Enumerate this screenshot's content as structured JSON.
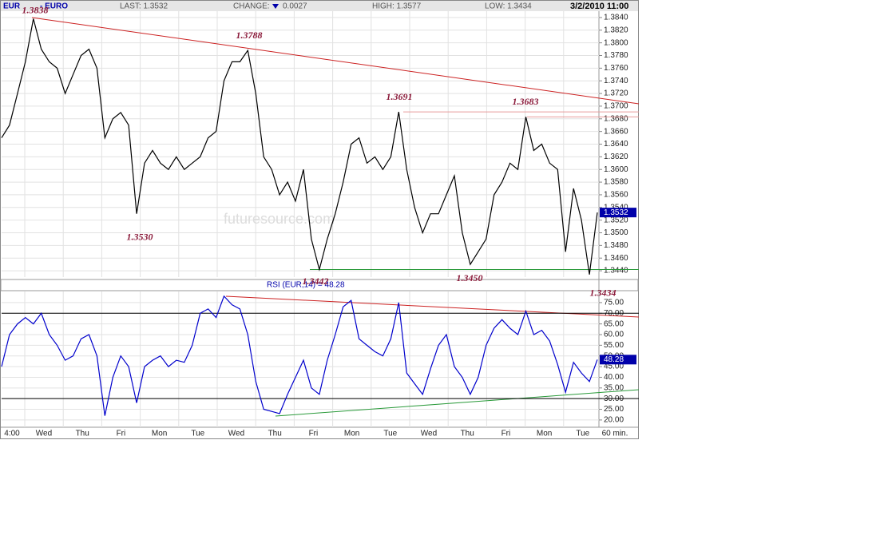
{
  "header": {
    "symbol": "EUR",
    "name": "- EURO",
    "last": "LAST: 1.3532",
    "change_label": "CHANGE:",
    "change": "0.0027",
    "high": "HIGH: 1.3577",
    "low": "LOW: 1.3434",
    "datetime": "3/2/2010 11:00"
  },
  "x_axis": {
    "labels": [
      "4:00",
      "Wed",
      "Thu",
      "Fri",
      "Mon",
      "Tue",
      "Wed",
      "Thu",
      "Fri",
      "Mon",
      "Tue",
      "Wed",
      "Thu",
      "Fri",
      "Mon",
      "Tue"
    ],
    "interval": "60 min."
  },
  "chart_data": [
    {
      "type": "line",
      "color": "#000000",
      "values": [
        1.365,
        1.367,
        1.372,
        1.377,
        1.3838,
        1.379,
        1.377,
        1.376,
        1.372,
        1.375,
        1.378,
        1.379,
        1.376,
        1.365,
        1.368,
        1.369,
        1.367,
        1.353,
        1.361,
        1.363,
        1.361,
        1.36,
        1.362,
        1.36,
        1.361,
        1.362,
        1.365,
        1.366,
        1.374,
        1.377,
        1.377,
        1.3788,
        1.372,
        1.362,
        1.36,
        1.356,
        1.358,
        1.355,
        1.36,
        1.349,
        1.3442,
        1.349,
        1.353,
        1.358,
        1.364,
        1.365,
        1.361,
        1.362,
        1.36,
        1.362,
        1.3691,
        1.36,
        1.354,
        1.35,
        1.353,
        1.353,
        1.356,
        1.359,
        1.35,
        1.345,
        1.347,
        1.349,
        1.356,
        1.358,
        1.361,
        1.36,
        1.3683,
        1.363,
        1.364,
        1.361,
        1.36,
        1.347,
        1.357,
        1.352,
        1.3434,
        1.3532
      ],
      "ylim": [
        1.343,
        1.385
      ],
      "yticks": [
        {
          "value": 1.344,
          "label": "1.3440"
        },
        {
          "value": 1.346,
          "label": "1.3460"
        },
        {
          "value": 1.348,
          "label": "1.3480"
        },
        {
          "value": 1.35,
          "label": "1.3500"
        },
        {
          "value": 1.352,
          "label": "1.3520"
        },
        {
          "value": 1.354,
          "label": "1.3540"
        },
        {
          "value": 1.356,
          "label": "1.3560"
        },
        {
          "value": 1.358,
          "label": "1.3580"
        },
        {
          "value": 1.36,
          "label": "1.3600"
        },
        {
          "value": 1.362,
          "label": "1.3620"
        },
        {
          "value": 1.364,
          "label": "1.3640"
        },
        {
          "value": 1.366,
          "label": "1.3660"
        },
        {
          "value": 1.368,
          "label": "1.3680"
        },
        {
          "value": 1.37,
          "label": "1.3700"
        },
        {
          "value": 1.372,
          "label": "1.3720"
        },
        {
          "value": 1.374,
          "label": "1.3740"
        },
        {
          "value": 1.376,
          "label": "1.3760"
        },
        {
          "value": 1.378,
          "label": "1.3780"
        },
        {
          "value": 1.38,
          "label": "1.3800"
        },
        {
          "value": 1.382,
          "label": "1.3820"
        },
        {
          "value": 1.384,
          "label": "1.3840"
        }
      ],
      "grid": true,
      "levels": [
        {
          "value": 1.3691,
          "color": "#e89a9a"
        },
        {
          "value": 1.3683,
          "color": "#e89a9a"
        },
        {
          "value": 1.3442,
          "color": "#2a9a3a"
        }
      ],
      "annotations": [
        {
          "value": 1.3838,
          "label": "1.3838"
        },
        {
          "value": 1.3788,
          "label": "1.3788"
        },
        {
          "value": 1.3691,
          "label": "1.3691"
        },
        {
          "value": 1.3683,
          "label": "1.3683"
        },
        {
          "value": 1.353,
          "label": "1.3530"
        },
        {
          "value": 1.3442,
          "label": "1.3442"
        },
        {
          "value": 1.345,
          "label": "1.3450"
        },
        {
          "value": 1.3434,
          "label": "1.3434"
        }
      ],
      "last_label": "1.3532",
      "watermark": "futuresource.com"
    },
    {
      "type": "line",
      "color": "#0000cc",
      "title": "RSI (EUR,14) = 48.28",
      "values": [
        45,
        60,
        65,
        68,
        65,
        70,
        60,
        55,
        48,
        50,
        58,
        60,
        50,
        22,
        40,
        50,
        45,
        28,
        45,
        48,
        50,
        45,
        48,
        47,
        55,
        70,
        72,
        68,
        78,
        74,
        72,
        60,
        38,
        25,
        24,
        23,
        32,
        40,
        48,
        35,
        32,
        48,
        60,
        73,
        76,
        58,
        55,
        52,
        50,
        58,
        75,
        42,
        37,
        32,
        44,
        55,
        60,
        45,
        40,
        32,
        40,
        55,
        63,
        67,
        63,
        60,
        71,
        60,
        62,
        57,
        46,
        33,
        47,
        42,
        38,
        48.28
      ],
      "ylim": [
        16.6,
        80.2
      ],
      "yticks": [
        {
          "value": 20,
          "label": "20.00"
        },
        {
          "value": 25,
          "label": "25.00"
        },
        {
          "value": 30,
          "label": "30.00"
        },
        {
          "value": 35,
          "label": "35.00"
        },
        {
          "value": 40,
          "label": "40.00"
        },
        {
          "value": 45,
          "label": "45.00"
        },
        {
          "value": 50,
          "label": "50.00"
        },
        {
          "value": 55,
          "label": "55.00"
        },
        {
          "value": 60,
          "label": "60.00"
        },
        {
          "value": 65,
          "label": "65.00"
        },
        {
          "value": 70,
          "label": "70.00"
        },
        {
          "value": 75,
          "label": "75.00"
        }
      ],
      "grid": true,
      "reference_lines": [
        70,
        30
      ],
      "last_label": "48.28"
    }
  ]
}
